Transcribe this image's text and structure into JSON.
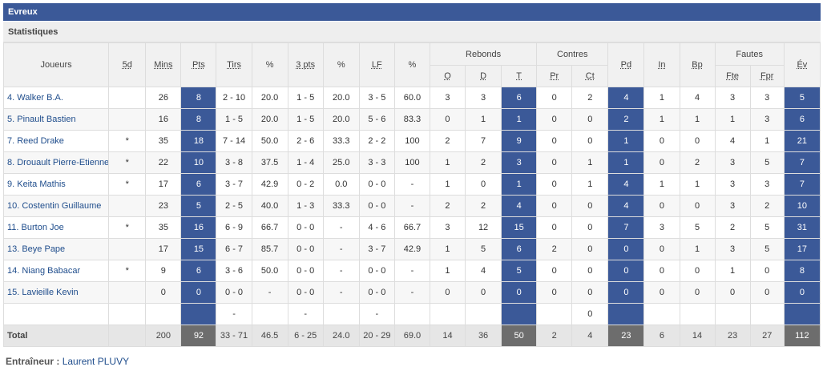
{
  "team": "Evreux",
  "section": "Statistiques",
  "headers": {
    "joueurs": "Joueurs",
    "cinq": "5d",
    "mins": "Mins",
    "pts": "Pts",
    "tirs": "Tirs",
    "pct1": "%",
    "trois": "3 pts",
    "pct2": "%",
    "lf": "LF",
    "pct3": "%",
    "rebonds": "Rebonds",
    "contres": "Contres",
    "pd": "Pd",
    "in": "In",
    "bp": "Bp",
    "fautes": "Fautes",
    "ev": "Év",
    "reb_o": "O",
    "reb_d": "D",
    "reb_t": "T",
    "contre_pr": "Pr",
    "contre_ct": "Ct",
    "faute_fte": "Fte",
    "faute_fpr": "Fpr"
  },
  "players": [
    [
      "4. Walker B.A.",
      "",
      "26",
      "8",
      "2 - 10",
      "20.0",
      "1 - 5",
      "20.0",
      "3 - 5",
      "60.0",
      "3",
      "3",
      "6",
      "0",
      "2",
      "4",
      "1",
      "4",
      "3",
      "3",
      "5"
    ],
    [
      "5. Pinault Bastien",
      "",
      "16",
      "8",
      "1 - 5",
      "20.0",
      "1 - 5",
      "20.0",
      "5 - 6",
      "83.3",
      "0",
      "1",
      "1",
      "0",
      "0",
      "2",
      "1",
      "1",
      "1",
      "3",
      "6"
    ],
    [
      "7. Reed Drake",
      "*",
      "35",
      "18",
      "7 - 14",
      "50.0",
      "2 - 6",
      "33.3",
      "2 - 2",
      "100",
      "2",
      "7",
      "9",
      "0",
      "0",
      "1",
      "0",
      "0",
      "4",
      "1",
      "21"
    ],
    [
      "8. Drouault Pierre-Etienne",
      "*",
      "22",
      "10",
      "3 - 8",
      "37.5",
      "1 - 4",
      "25.0",
      "3 - 3",
      "100",
      "1",
      "2",
      "3",
      "0",
      "1",
      "1",
      "0",
      "2",
      "3",
      "5",
      "7"
    ],
    [
      "9. Keita Mathis",
      "*",
      "17",
      "6",
      "3 - 7",
      "42.9",
      "0 - 2",
      "0.0",
      "0 - 0",
      "-",
      "1",
      "0",
      "1",
      "0",
      "1",
      "4",
      "1",
      "1",
      "3",
      "3",
      "7"
    ],
    [
      "10. Costentin Guillaume",
      "",
      "23",
      "5",
      "2 - 5",
      "40.0",
      "1 - 3",
      "33.3",
      "0 - 0",
      "-",
      "2",
      "2",
      "4",
      "0",
      "0",
      "4",
      "0",
      "0",
      "3",
      "2",
      "10"
    ],
    [
      "11. Burton Joe",
      "*",
      "35",
      "16",
      "6 - 9",
      "66.7",
      "0 - 0",
      "-",
      "4 - 6",
      "66.7",
      "3",
      "12",
      "15",
      "0",
      "0",
      "7",
      "3",
      "5",
      "2",
      "5",
      "31"
    ],
    [
      "13. Beye Pape",
      "",
      "17",
      "15",
      "6 - 7",
      "85.7",
      "0 - 0",
      "-",
      "3 - 7",
      "42.9",
      "1",
      "5",
      "6",
      "2",
      "0",
      "0",
      "0",
      "1",
      "3",
      "5",
      "17"
    ],
    [
      "14. Niang Babacar",
      "*",
      "9",
      "6",
      "3 - 6",
      "50.0",
      "0 - 0",
      "-",
      "0 - 0",
      "-",
      "1",
      "4",
      "5",
      "0",
      "0",
      "0",
      "0",
      "0",
      "1",
      "0",
      "8"
    ],
    [
      "15. Lavieille Kevin",
      "",
      "0",
      "0",
      "0 - 0",
      "-",
      "0 - 0",
      "-",
      "0 - 0",
      "-",
      "0",
      "0",
      "0",
      "0",
      "0",
      "0",
      "0",
      "0",
      "0",
      "0",
      "0"
    ]
  ],
  "team_row": [
    "",
    "",
    "",
    "",
    "-",
    "",
    "-",
    "",
    "-",
    "",
    "",
    "",
    "",
    "",
    "0",
    "",
    "",
    "",
    "",
    "",
    ""
  ],
  "total": [
    "Total",
    "",
    "200",
    "92",
    "33 - 71",
    "46.5",
    "6 - 25",
    "24.0",
    "20 - 29",
    "69.0",
    "14",
    "36",
    "50",
    "2",
    "4",
    "23",
    "6",
    "14",
    "23",
    "27",
    "112"
  ],
  "coach": {
    "label": "Entraîneur :",
    "name": "Laurent PLUVY"
  },
  "highlight_columns": [
    3,
    12,
    15,
    20
  ],
  "colors": {
    "header_blue": "#3b5998",
    "link": "#1f4d8c",
    "total_highlight": "#6d6d6d"
  }
}
